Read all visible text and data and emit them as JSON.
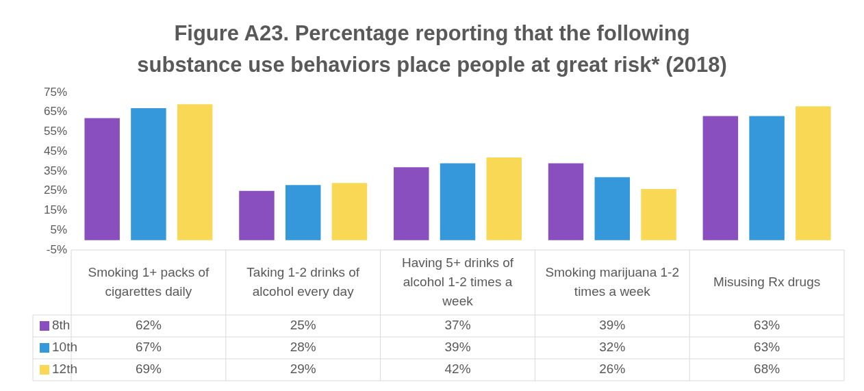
{
  "chart_data": {
    "type": "bar",
    "title": "Figure A23. Percentage reporting that the following substance use behaviors place people at great risk* (2018)",
    "categories": [
      "Smoking 1+ packs of cigarettes daily",
      "Taking 1-2 drinks of alcohol every day",
      "Having 5+ drinks of alcohol 1-2 times a week",
      "Smoking marijuana 1-2 times a week",
      "Misusing Rx drugs"
    ],
    "series": [
      {
        "name": "8th",
        "color": "#8a4fbf",
        "values": [
          62,
          25,
          37,
          39,
          63
        ],
        "value_labels": [
          "62%",
          "25%",
          "37%",
          "39%",
          "63%"
        ]
      },
      {
        "name": "10th",
        "color": "#3498db",
        "values": [
          67,
          28,
          39,
          32,
          63
        ],
        "value_labels": [
          "67%",
          "28%",
          "39%",
          "32%",
          "63%"
        ]
      },
      {
        "name": "12th",
        "color": "#f8d855",
        "values": [
          69,
          29,
          42,
          26,
          68
        ],
        "value_labels": [
          "69%",
          "29%",
          "42%",
          "26%",
          "68%"
        ]
      }
    ],
    "ylim": [
      -5,
      75
    ],
    "yticks": [
      {
        "value": -5,
        "label": "-5%"
      },
      {
        "value": 5,
        "label": "5%"
      },
      {
        "value": 15,
        "label": "15%"
      },
      {
        "value": 25,
        "label": "25%"
      },
      {
        "value": 35,
        "label": "35%"
      },
      {
        "value": 45,
        "label": "45%"
      },
      {
        "value": 55,
        "label": "55%"
      },
      {
        "value": 65,
        "label": "65%"
      },
      {
        "value": 75,
        "label": "75%"
      }
    ],
    "grid": false,
    "legend": "bottom"
  }
}
